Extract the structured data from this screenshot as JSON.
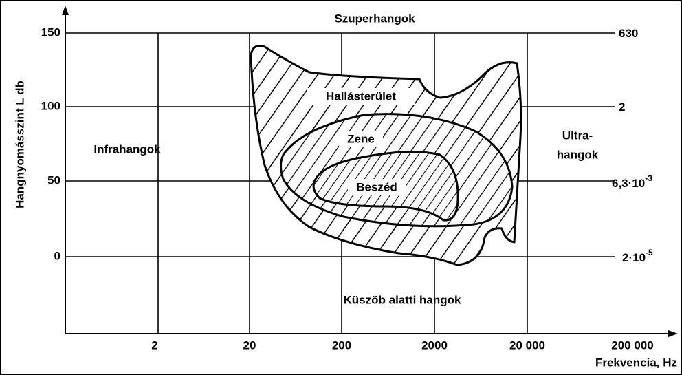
{
  "title_top": "Szuperhangok",
  "y_axis_label": "Hangnyomásszint L db",
  "x_axis_label": "Frekvencia, Hz",
  "y_ticks": [
    "150",
    "100",
    "50",
    "0"
  ],
  "x_ticks": [
    "2",
    "20",
    "200",
    "2000",
    "20 000",
    "200 000"
  ],
  "right_scale": [
    {
      "base": "630"
    },
    {
      "base": "2"
    },
    {
      "base": "6,3·10",
      "sup": "-3"
    },
    {
      "base": "2·10",
      "sup": "-5"
    }
  ],
  "regions": {
    "left": "Infrahangok",
    "right": [
      "Ultra-",
      "hangok"
    ],
    "bottom": "Küszöb alatti hangok",
    "hearing": "Hallásterület",
    "music": "Zene",
    "speech": "Beszéd"
  }
}
